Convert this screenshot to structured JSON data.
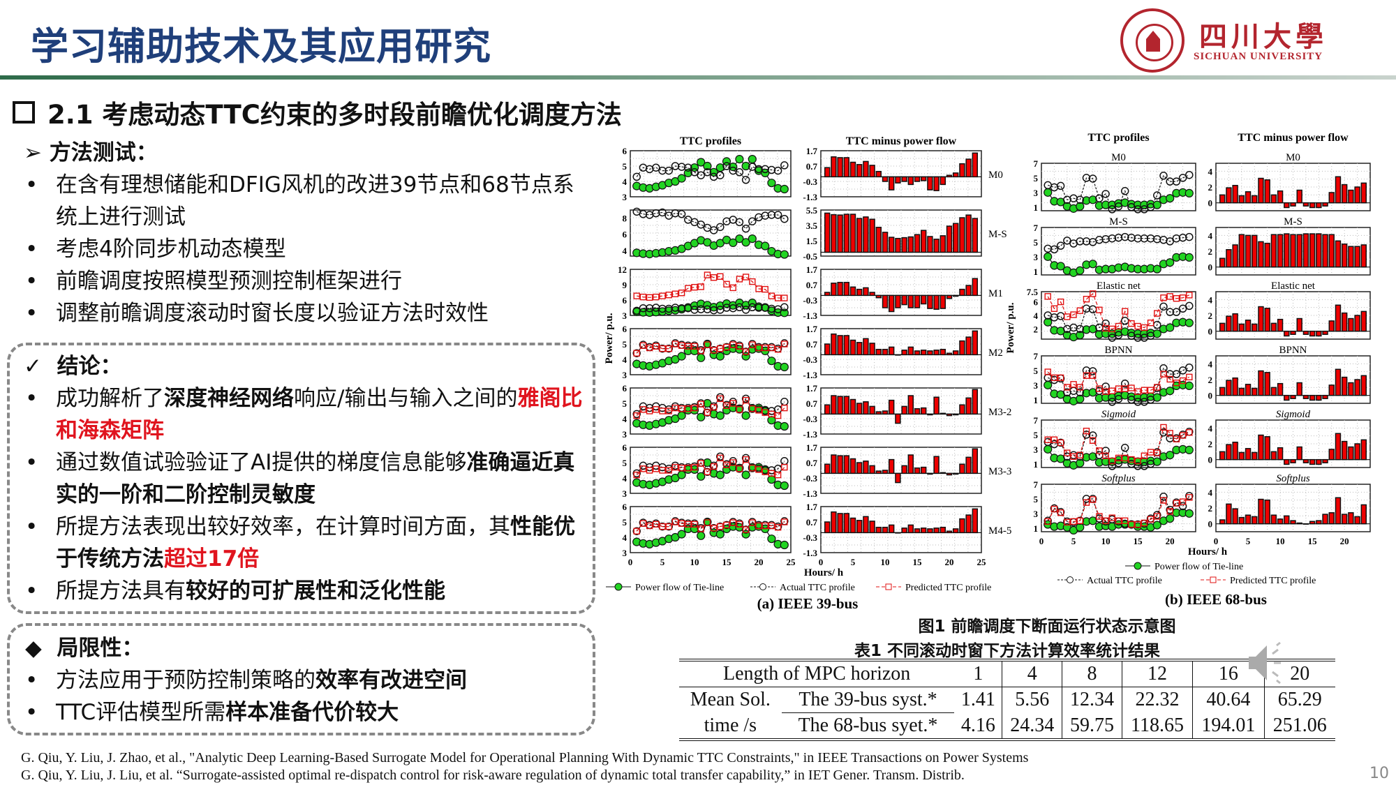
{
  "header": {
    "title": "学习辅助技术及其应用研究",
    "logo_cn": "四川大學",
    "logo_en": "SICHUAN UNIVERSITY"
  },
  "section": {
    "title": "2.1 考虑动态TTC约束的多时段前瞻优化调度方法"
  },
  "method": {
    "heading": "方法测试：",
    "bullets": [
      "在含有理想储能和DFIG风机的改进39节点和68节点系统上进行测试",
      "考虑4阶同步机动态模型",
      "前瞻调度按照模型预测控制框架进行",
      "调整前瞻调度滚动时窗长度以验证方法时效性"
    ]
  },
  "conclusion": {
    "heading": "结论：",
    "b1": [
      "成功解析了",
      "深度神经网络",
      "响应/输出与输入之间的",
      "雅阁比和海森矩阵"
    ],
    "b2": [
      "通过数值试验验证了AI提供的梯度信息能够",
      "准确逼近真实的一阶和二阶控制灵敏度"
    ],
    "b3": [
      "所提方法表现出较好效率，在计算时间方面，其",
      "性能优于传统方法",
      "超过17倍"
    ],
    "b4": [
      "所提方法具有",
      "较好的可扩展性和泛化性能"
    ]
  },
  "limit": {
    "heading": "局限性：",
    "b1": [
      "方法应用于预防控制策略的",
      "效率有改进空间"
    ],
    "b2": [
      "TTC评估模型所需",
      "样本准备代价较大"
    ]
  },
  "figure": {
    "caption": "图1 前瞻调度下断面运行状态示意图"
  },
  "table": {
    "caption": "表1 不同滚动时窗下方法计算效率统计结果",
    "header_label": "Length of MPC horizon",
    "horizons": [
      "1",
      "4",
      "8",
      "12",
      "16",
      "20"
    ],
    "row_label_1": "Mean Sol.",
    "row_label_2": "time /s",
    "rows": [
      {
        "name": "The 39-bus syst.*",
        "values": [
          "1.41",
          "5.56",
          "12.34",
          "22.32",
          "40.64",
          "65.29"
        ]
      },
      {
        "name": "The 68-bus syet.*",
        "values": [
          "4.16",
          "24.34",
          "59.75",
          "118.65",
          "194.01",
          "251.06"
        ]
      }
    ]
  },
  "references": [
    "G. Qiu, Y. Liu, J. Zhao, et al., \"Analytic Deep Learning-Based Surrogate Model for Operational Planning With Dynamic TTC Constraints,\" in IEEE Transactions on Power Systems",
    "G. Qiu, Y. Liu, J. Liu, et al. “Surrogate-assisted optimal re-dispatch control for risk-aware regulation of dynamic total transfer capability,” in IET Gener. Transm. Distrib."
  ],
  "page_number": "10",
  "chart_data": [
    {
      "type": "line+bar",
      "caption": "(a) IEEE 39-bus",
      "col_titles": [
        "TTC profiles",
        "TTC minus power flow"
      ],
      "ylabel": "Power/ p.u.",
      "xlabel": "Hours/ h",
      "xlim": [
        0,
        25
      ],
      "xticks": [
        0,
        5,
        10,
        15,
        20,
        25
      ],
      "legend": [
        "Power flow of Tie-line",
        "Actual TTC profile",
        "Predicted TTC profile"
      ],
      "sets": {
        "f1": [
          3.7,
          3.6,
          3.55,
          3.65,
          3.75,
          3.9,
          4.0,
          4.2,
          4.55,
          4.9,
          5.25,
          5.0,
          4.6,
          4.9,
          5.3,
          4.95,
          5.45,
          5.0,
          5.45,
          4.7,
          4.55,
          3.9,
          3.55,
          3.5
        ],
        "f2": [
          3.7,
          3.6,
          3.55,
          3.65,
          3.75,
          3.9,
          4.0,
          4.2,
          4.55,
          4.55,
          4.1,
          5.0,
          4.3,
          4.2,
          4.55,
          4.7,
          4.65,
          4.2,
          4.65,
          4.7,
          4.55,
          3.9,
          3.55,
          3.5
        ],
        "a0": [
          4.3,
          4.9,
          4.8,
          4.9,
          4.7,
          4.7,
          5.0,
          4.95,
          4.9,
          4.6,
          4.4,
          4.6,
          4.3,
          4.4,
          5.0,
          4.7,
          4.6,
          4.1,
          4.95,
          4.8,
          4.8,
          4.75,
          4.7,
          5.05
        ],
        "aS": [
          8.8,
          8.5,
          8.4,
          8.6,
          8.7,
          8.3,
          8.6,
          8.5,
          7.8,
          7.5,
          7.2,
          6.8,
          6.5,
          6.9,
          7.6,
          7.8,
          7.5,
          6.7,
          7.6,
          8.1,
          8.3,
          8.4,
          8.4,
          7.9
        ],
        "a1": [
          3.9,
          4.4,
          4.4,
          4.5,
          4.3,
          4.3,
          4.5,
          4.4,
          4.4,
          4.1,
          4.2,
          4.2,
          4.0,
          4.1,
          4.5,
          4.4,
          4.6,
          4.1,
          4.6,
          4.5,
          4.5,
          4.3,
          4.2,
          4.6
        ],
        "p1": [
          6.8,
          6.6,
          6.5,
          6.6,
          6.8,
          7.0,
          7.2,
          7.4,
          8.3,
          8.5,
          8.6,
          10.9,
          10.4,
          10.6,
          9.1,
          8.4,
          10.1,
          10.5,
          9.6,
          8.2,
          8.1,
          6.8,
          6.4,
          6.4
        ],
        "a2": [
          4.4,
          4.95,
          4.8,
          4.9,
          4.7,
          4.7,
          5.05,
          4.95,
          4.9,
          4.9,
          4.6,
          5.0,
          4.6,
          4.7,
          4.8,
          5.0,
          4.9,
          4.5,
          5.0,
          4.8,
          4.8,
          4.8,
          4.7,
          5.05
        ],
        "p2": [
          4.4,
          4.9,
          4.75,
          4.85,
          4.7,
          4.7,
          5.0,
          4.9,
          4.85,
          4.85,
          4.55,
          4.95,
          4.6,
          4.7,
          4.8,
          4.95,
          4.85,
          4.5,
          4.95,
          4.75,
          4.75,
          4.75,
          4.65,
          5.0
        ],
        "a3": [
          4.3,
          4.8,
          4.7,
          4.8,
          4.7,
          4.6,
          4.8,
          4.7,
          4.7,
          4.75,
          5.0,
          4.4,
          4.8,
          5.4,
          4.9,
          5.1,
          4.6,
          5.3,
          4.7,
          4.6,
          4.5,
          4.5,
          4.6,
          5.1
        ],
        "p3": [
          4.2,
          4.6,
          4.5,
          4.6,
          4.5,
          4.5,
          4.7,
          4.65,
          4.65,
          4.7,
          4.95,
          4.4,
          4.75,
          5.3,
          4.85,
          5.0,
          4.6,
          5.2,
          4.65,
          4.55,
          4.4,
          4.3,
          4.2,
          4.7
        ]
      },
      "panels": [
        {
          "label": "M0",
          "flow": "f1",
          "actual": "a0",
          "ylim": [
            3,
            6
          ],
          "yticks": [
            3,
            4,
            5,
            6
          ],
          "blim": [
            -1.3,
            1.7
          ],
          "bticks": [
            -1.3,
            -0.3,
            0.7,
            1.7
          ]
        },
        {
          "label": "M-S",
          "flow": "f1",
          "actual": "aS",
          "ylim": [
            3.3,
            9
          ],
          "yticks": [
            4,
            6,
            8
          ],
          "blim": [
            -0.5,
            5.5
          ],
          "bticks": [
            -0.5,
            1.5,
            3.5,
            5.5
          ]
        },
        {
          "label": "M1",
          "flow": "f1",
          "actual": "a1",
          "pred": "p1",
          "ylim": [
            3,
            12
          ],
          "yticks": [
            3,
            6,
            9,
            12
          ],
          "blim": [
            -1.3,
            1.7
          ],
          "bticks": [
            -1.3,
            -0.3,
            0.7,
            1.7
          ]
        },
        {
          "label": "M2",
          "flow": "f2",
          "actual": "a2",
          "pred": "p2",
          "ylim": [
            3,
            6
          ],
          "yticks": [
            3,
            4,
            5,
            6
          ],
          "blim": [
            -1.3,
            1.7
          ],
          "bticks": [
            -1.3,
            -0.3,
            0.7,
            1.7
          ]
        },
        {
          "label": "M3-2",
          "flow": "f2",
          "actual": "a3",
          "pred": "p3",
          "ylim": [
            3,
            6
          ],
          "yticks": [
            3,
            4,
            5,
            6
          ],
          "blim": [
            -1.3,
            1.7
          ],
          "bticks": [
            -1.3,
            -0.3,
            0.7,
            1.7
          ]
        },
        {
          "label": "M3-3",
          "flow": "f2",
          "actual": "a3",
          "pred": "p3",
          "ylim": [
            3,
            6
          ],
          "yticks": [
            3,
            4,
            5,
            6
          ],
          "blim": [
            -1.3,
            1.7
          ],
          "bticks": [
            -1.3,
            -0.3,
            0.7,
            1.7
          ]
        },
        {
          "label": "M4-5",
          "flow": "f2",
          "actual": "a2",
          "pred": "p2",
          "ylim": [
            3,
            6
          ],
          "yticks": [
            3,
            4,
            5,
            6
          ],
          "blim": [
            -1.3,
            1.7
          ],
          "bticks": [
            -1.3,
            -0.3,
            0.7,
            1.7
          ]
        }
      ]
    },
    {
      "type": "line+bar",
      "caption": "(b) IEEE 68-bus",
      "col_titles": [
        "TTC profiles",
        "TTC minus power flow"
      ],
      "ylabel": "Power/ p.u.",
      "xlabel": "Hours/ h",
      "xlim": [
        0,
        24
      ],
      "xticks": [
        0,
        5,
        10,
        15,
        20
      ],
      "legend": [
        "Power flow of Tie-line",
        "Actual TTC profile",
        "Predicted TTC profile"
      ],
      "sets": {
        "f": [
          3.0,
          1.8,
          1.7,
          1.1,
          0.8,
          1.1,
          1.9,
          2.0,
          1.2,
          1.3,
          1.3,
          1.5,
          1.6,
          1.4,
          1.3,
          1.3,
          1.4,
          1.3,
          2.0,
          2.2,
          2.9,
          3.0,
          2.9
        ],
        "a": [
          4.0,
          3.7,
          3.9,
          2.0,
          2.2,
          2.0,
          5.0,
          4.9,
          2.2,
          2.8,
          0.7,
          1.1,
          3.2,
          1.0,
          0.7,
          0.7,
          1.0,
          2.6,
          5.3,
          4.5,
          4.5,
          5.0,
          5.4
        ],
        "aS": [
          4.1,
          4.0,
          4.5,
          5.2,
          4.8,
          5.1,
          5.1,
          5.0,
          5.3,
          5.4,
          5.5,
          5.6,
          5.7,
          5.6,
          5.5,
          5.5,
          5.5,
          5.4,
          5.3,
          5.1,
          5.5,
          5.6,
          5.7
        ],
        "pE": [
          6.8,
          5.0,
          6.0,
          3.8,
          4.1,
          4.7,
          6.4,
          7.2,
          4.8,
          2.1,
          2.0,
          2.4,
          4.6,
          2.8,
          2.4,
          2.2,
          2.9,
          4.3,
          6.6,
          6.8,
          6.5,
          6.6,
          7.0
        ],
        "pB": [
          4.8,
          4.0,
          4.0,
          2.7,
          3.1,
          2.7,
          4.3,
          4.3,
          2.5,
          2.1,
          2.2,
          2.5,
          2.5,
          2.6,
          2.1,
          2.3,
          2.3,
          2.7,
          4.5,
          3.8,
          3.3,
          3.6,
          4.1
        ],
        "pS": [
          4.3,
          4.3,
          3.9,
          2.5,
          2.0,
          2.2,
          5.5,
          4.2,
          2.8,
          2.1,
          1.4,
          1.8,
          1.8,
          1.6,
          1.4,
          2.1,
          2.6,
          2.5,
          6.0,
          5.2,
          4.4,
          4.9,
          5.3
        ],
        "fT": [
          1.5,
          1.2,
          1.3,
          1.1,
          0.7,
          1.1,
          1.9,
          2.0,
          1.2,
          1.3,
          1.2,
          1.5,
          1.5,
          1.5,
          1.2,
          1.2,
          1.1,
          1.4,
          2.0,
          2.3,
          3.1,
          3.1,
          3.0
        ],
        "aT": [
          2.0,
          3.7,
          3.2,
          1.9,
          1.8,
          2.0,
          5.0,
          5.0,
          2.3,
          1.9,
          2.2,
          1.9,
          1.6,
          1.5,
          1.5,
          1.6,
          2.3,
          2.8,
          5.3,
          3.5,
          4.5,
          4.0,
          5.4
        ],
        "pT": [
          1.9,
          3.6,
          3.1,
          1.8,
          1.9,
          2.0,
          4.5,
          4.9,
          2.6,
          2.0,
          2.4,
          2.0,
          2.0,
          1.5,
          1.5,
          1.7,
          2.2,
          2.6,
          4.8,
          3.3,
          4.4,
          4.6,
          5.2
        ]
      },
      "panels": [
        {
          "label": "M0",
          "flow": "f",
          "actual": "a",
          "ylim": [
            0.5,
            7
          ],
          "yticks": [
            1,
            3,
            5,
            7
          ],
          "blim": [
            -1,
            5
          ],
          "bticks": [
            0,
            2,
            4
          ]
        },
        {
          "label": "M-S",
          "flow": "f",
          "actual": "aS",
          "ylim": [
            0.5,
            7
          ],
          "yticks": [
            1,
            3,
            5,
            7
          ],
          "blim": [
            -1,
            5
          ],
          "bticks": [
            0,
            2,
            4
          ]
        },
        {
          "label": "Elastic net",
          "flow": "f",
          "actual": "a",
          "pred": "pE",
          "ylim": [
            0.5,
            7.5
          ],
          "yticks": [
            2,
            4,
            6,
            7.5
          ],
          "blim": [
            -1,
            5
          ],
          "bticks": [
            0,
            2,
            4
          ]
        },
        {
          "label": "BPNN",
          "flow": "f",
          "actual": "a",
          "pred": "pB",
          "ylim": [
            0.5,
            7
          ],
          "yticks": [
            1,
            3,
            5,
            7
          ],
          "blim": [
            -1,
            5
          ],
          "bticks": [
            0,
            2,
            4
          ]
        },
        {
          "label": "Sigmoid",
          "flow": "f",
          "actual": "a",
          "pred": "pS",
          "ylim": [
            0.5,
            7
          ],
          "yticks": [
            1,
            3,
            5,
            7
          ],
          "blim": [
            -1,
            5
          ],
          "bticks": [
            0,
            2,
            4
          ]
        },
        {
          "label": "Softplus",
          "flow": "fT",
          "actual": "aT",
          "pred": "pT",
          "ylim": [
            0.5,
            7
          ],
          "yticks": [
            1,
            3,
            5,
            7
          ],
          "blim": [
            -1,
            5
          ],
          "bticks": [
            0,
            2,
            4
          ]
        }
      ]
    }
  ]
}
